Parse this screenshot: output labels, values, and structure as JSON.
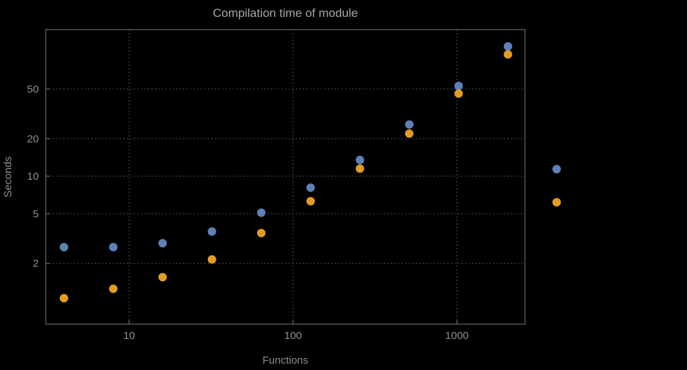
{
  "title": "Compilation time of module",
  "colors": {
    "background": "#000000",
    "frame": "#616161",
    "grid": "#555555",
    "title": "#a6a6a6",
    "tick_label": "#8f8f8f",
    "axis_label": "#8f8f8f",
    "series_blue": "#5e81b5",
    "series_orange": "#e19c24"
  },
  "chart_data": {
    "type": "scatter",
    "title": "Compilation time of module",
    "xlabel": "Functions",
    "ylabel": "Seconds",
    "x_scale": "log",
    "y_scale": "log",
    "grid": "dotted",
    "legend_position": "right-outside",
    "x_ticks": [
      10,
      100,
      1000
    ],
    "y_ticks": [
      2,
      5,
      10,
      20,
      50
    ],
    "xlim": [
      3.1,
      2600
    ],
    "ylim": [
      0.65,
      150
    ],
    "x": [
      4,
      8,
      16,
      32,
      64,
      128,
      256,
      512,
      1024,
      2048
    ],
    "series": [
      {
        "name": "series-blue",
        "color": "#5e81b5",
        "values": [
          2.7,
          2.7,
          2.9,
          3.6,
          5.1,
          8.1,
          13.5,
          26,
          53,
          110
        ]
      },
      {
        "name": "series-orange",
        "color": "#e19c24",
        "values": [
          1.05,
          1.25,
          1.55,
          2.15,
          3.5,
          6.3,
          11.5,
          22,
          46,
          95
        ]
      }
    ],
    "legend_markers": [
      {
        "name": "legend-marker-blue",
        "color": "#5e81b5"
      },
      {
        "name": "legend-marker-orange",
        "color": "#e19c24"
      }
    ]
  }
}
